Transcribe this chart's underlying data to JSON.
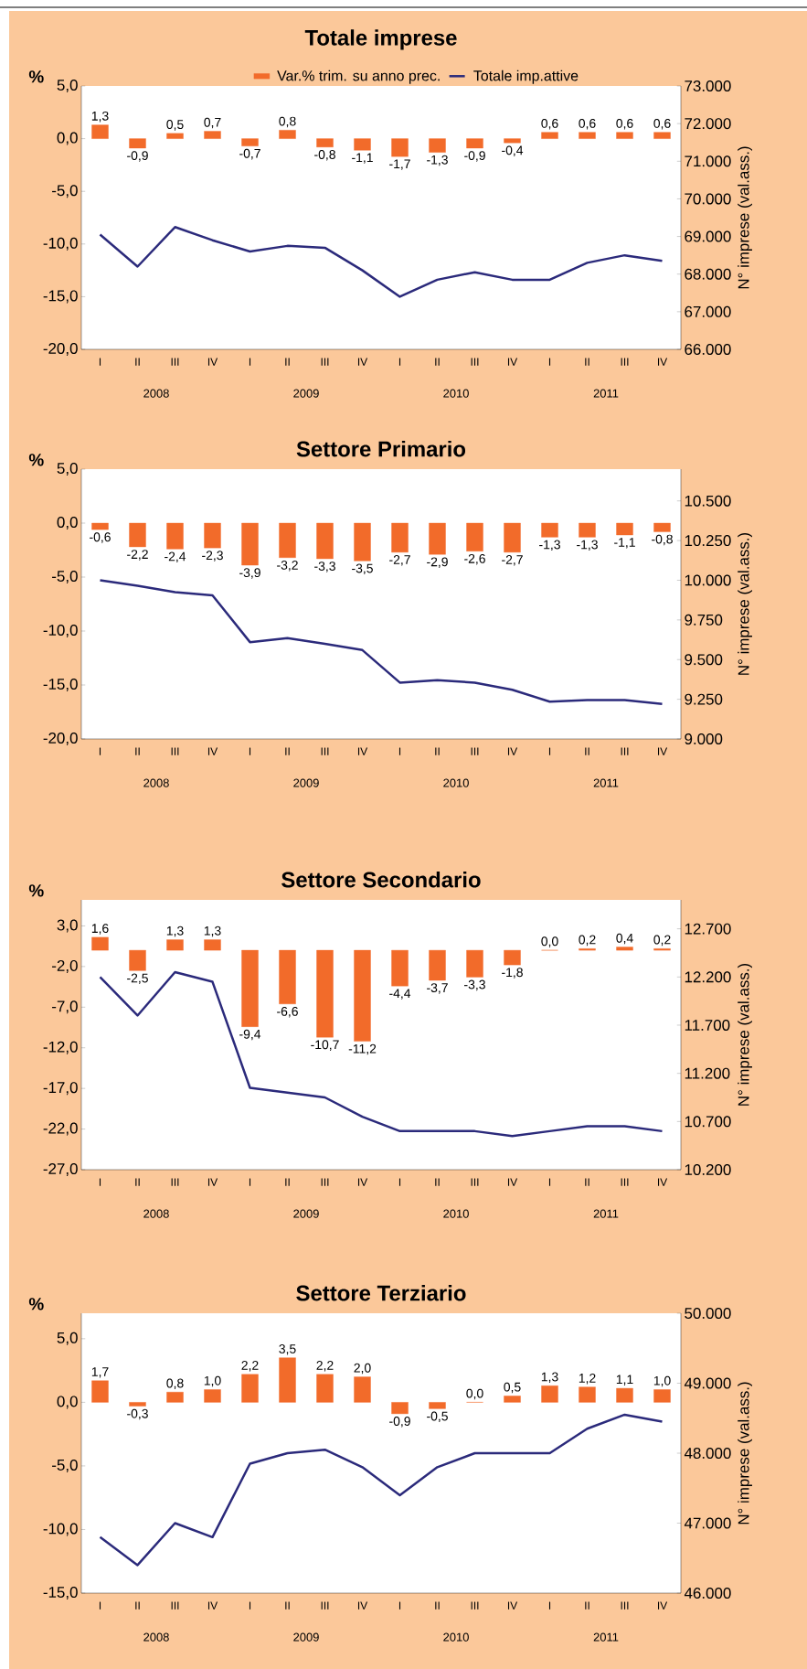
{
  "chart_data": [
    {
      "type": "bar",
      "title": "Totale imprese",
      "ylabel": "%",
      "y2label": "N° imprese (val.ass.)",
      "legend": "top",
      "marker": "none",
      "categories": [
        "I",
        "II",
        "III",
        "IV",
        "I",
        "II",
        "III",
        "IV",
        "I",
        "II",
        "III",
        "IV",
        "I",
        "II",
        "III",
        "IV"
      ],
      "annotations": [
        "2008",
        "2009",
        "2010",
        "2011"
      ],
      "ylim": [
        -20,
        5
      ],
      "yticks": [
        {
          "value": -20,
          "label": "-20,0"
        },
        {
          "value": -15,
          "label": "-15,0"
        },
        {
          "value": -10,
          "label": "-10,0"
        },
        {
          "value": -5,
          "label": "-5,0"
        },
        {
          "value": 0,
          "label": "0,0"
        },
        {
          "value": 5,
          "label": "5,0"
        }
      ],
      "y2lim": [
        66000,
        73000
      ],
      "y2ticks": [
        {
          "value": 66000,
          "label": "66.000"
        },
        {
          "value": 67000,
          "label": "67.000"
        },
        {
          "value": 68000,
          "label": "68.000"
        },
        {
          "value": 69000,
          "label": "69.000"
        },
        {
          "value": 70000,
          "label": "70.000"
        },
        {
          "value": 71000,
          "label": "71.000"
        },
        {
          "value": 72000,
          "label": "72.000"
        },
        {
          "value": 73000,
          "label": "73.000"
        }
      ],
      "series": [
        {
          "name": "Var.% trim. su anno prec.",
          "color": "#f26b2a",
          "values": [
            1.3,
            -0.9,
            0.5,
            0.7,
            -0.7,
            0.8,
            -0.8,
            -1.1,
            -1.7,
            -1.3,
            -0.9,
            -0.4,
            0.6,
            0.6,
            0.6,
            0.6
          ],
          "value_labels": [
            "1,3",
            "-0,9",
            "0,5",
            "0,7",
            "-0,7",
            "0,8",
            "-0,8",
            "-1,1",
            "-1,7",
            "-1,3",
            "-0,9",
            "-0,4",
            "0,6",
            "0,6",
            "0,6",
            "0,6"
          ]
        },
        {
          "type": "line",
          "name": "Totale imp.attive",
          "color": "#2b2a7b",
          "axis": "y2",
          "values": [
            69050,
            68200,
            69250,
            68900,
            68600,
            68750,
            68700,
            68100,
            67400,
            67850,
            68050,
            67850,
            67850,
            68300,
            68500,
            68350
          ]
        }
      ]
    },
    {
      "type": "bar",
      "title": "Settore Primario",
      "ylabel": "%",
      "y2label": "N° imprese (val.ass.)",
      "legend": false,
      "marker": "none",
      "categories": [
        "I",
        "II",
        "III",
        "IV",
        "I",
        "II",
        "III",
        "IV",
        "I",
        "II",
        "III",
        "IV",
        "I",
        "II",
        "III",
        "IV"
      ],
      "annotations": [
        "2008",
        "2009",
        "2010",
        "2011"
      ],
      "ylim": [
        -20,
        5
      ],
      "yticks": [
        {
          "value": -20,
          "label": "-20,0"
        },
        {
          "value": -15,
          "label": "-15,0"
        },
        {
          "value": -10,
          "label": "-10,0"
        },
        {
          "value": -5,
          "label": "-5,0"
        },
        {
          "value": 0,
          "label": "0,0"
        },
        {
          "value": 5,
          "label": "5,0"
        }
      ],
      "y2lim": [
        9000,
        10700
      ],
      "y2ticks": [
        {
          "value": 9000,
          "label": "9.000"
        },
        {
          "value": 9250,
          "label": "9.250"
        },
        {
          "value": 9500,
          "label": "9.500"
        },
        {
          "value": 9750,
          "label": "9.750"
        },
        {
          "value": 10000,
          "label": "10.000"
        },
        {
          "value": 10250,
          "label": "10.250"
        },
        {
          "value": 10500,
          "label": "10.500"
        }
      ],
      "series": [
        {
          "color": "#f26b2a",
          "values": [
            -0.6,
            -2.2,
            -2.4,
            -2.3,
            -3.9,
            -3.2,
            -3.3,
            -3.5,
            -2.7,
            -2.9,
            -2.6,
            -2.7,
            -1.3,
            -1.3,
            -1.1,
            -0.8
          ],
          "value_labels": [
            "-0,6",
            "-2,2",
            "-2,4",
            "-2,3",
            "-3,9",
            "-3,2",
            "-3,3",
            "-3,5",
            "-2,7",
            "-2,9",
            "-2,6",
            "-2,7",
            "-1,3",
            "-1,3",
            "-1,1",
            "-0,8"
          ]
        },
        {
          "type": "line",
          "color": "#2b2a7b",
          "axis": "y2",
          "values": [
            10000,
            9965,
            9925,
            9905,
            9610,
            9635,
            9600,
            9560,
            9355,
            9370,
            9355,
            9310,
            9235,
            9245,
            9245,
            9220
          ]
        }
      ]
    },
    {
      "type": "bar",
      "title": "Settore Secondario",
      "ylabel": "%",
      "y2label": "N° imprese (val.ass.)",
      "legend": false,
      "marker": "none",
      "categories": [
        "I",
        "II",
        "III",
        "IV",
        "I",
        "II",
        "III",
        "IV",
        "I",
        "II",
        "III",
        "IV",
        "I",
        "II",
        "III",
        "IV"
      ],
      "annotations": [
        "2008",
        "2009",
        "2010",
        "2011"
      ],
      "ylim": [
        -27,
        6.2
      ],
      "yticks": [
        {
          "value": -27,
          "label": "-27,0"
        },
        {
          "value": -22,
          "label": "-22,0"
        },
        {
          "value": -17,
          "label": "-17,0"
        },
        {
          "value": -12,
          "label": "-12,0"
        },
        {
          "value": -7,
          "label": "-7,0"
        },
        {
          "value": -2,
          "label": "-2,0"
        },
        {
          "value": 3,
          "label": "3,0"
        }
      ],
      "y2lim": [
        10200,
        13000
      ],
      "y2ticks": [
        {
          "value": 10200,
          "label": "10.200"
        },
        {
          "value": 10700,
          "label": "10.700"
        },
        {
          "value": 11200,
          "label": "11.200"
        },
        {
          "value": 11700,
          "label": "11.700"
        },
        {
          "value": 12200,
          "label": "12.200"
        },
        {
          "value": 12700,
          "label": "12.700"
        }
      ],
      "series": [
        {
          "color": "#f26b2a",
          "values": [
            1.6,
            -2.5,
            1.3,
            1.3,
            -9.4,
            -6.6,
            -10.7,
            -11.2,
            -4.4,
            -3.7,
            -3.3,
            -1.8,
            0.0,
            0.2,
            0.4,
            0.2
          ],
          "value_labels": [
            "1,6",
            "-2,5",
            "1,3",
            "1,3",
            "-9,4",
            "-6,6",
            "-10,7",
            "-11,2",
            "-4,4",
            "-3,7",
            "-3,3",
            "-1,8",
            "0,0",
            "0,2",
            "0,4",
            "0,2"
          ]
        },
        {
          "type": "line",
          "color": "#2b2a7b",
          "axis": "y2",
          "values": [
            12200,
            11800,
            12250,
            12150,
            11050,
            11000,
            10950,
            10750,
            10600,
            10600,
            10600,
            10550,
            10600,
            10650,
            10650,
            10600
          ]
        }
      ]
    },
    {
      "type": "bar",
      "title": "Settore Terziario",
      "ylabel": "%",
      "y2label": "N° imprese (val.ass.)",
      "legend": false,
      "marker": "none",
      "categories": [
        "I",
        "II",
        "III",
        "IV",
        "I",
        "II",
        "III",
        "IV",
        "I",
        "II",
        "III",
        "IV",
        "I",
        "II",
        "III",
        "IV"
      ],
      "annotations": [
        "2008",
        "2009",
        "2010",
        "2011"
      ],
      "ylim": [
        -15,
        7
      ],
      "yticks": [
        {
          "value": -15,
          "label": "-15,0"
        },
        {
          "value": -10,
          "label": "-10,0"
        },
        {
          "value": -5,
          "label": "-5,0"
        },
        {
          "value": 0,
          "label": "0,0"
        },
        {
          "value": 5,
          "label": "5,0"
        }
      ],
      "y2lim": [
        46000,
        50000
      ],
      "y2ticks": [
        {
          "value": 46000,
          "label": "46.000"
        },
        {
          "value": 47000,
          "label": "47.000"
        },
        {
          "value": 48000,
          "label": "48.000"
        },
        {
          "value": 49000,
          "label": "49.000"
        },
        {
          "value": 50000,
          "label": "50.000"
        }
      ],
      "series": [
        {
          "color": "#f26b2a",
          "values": [
            1.7,
            -0.3,
            0.8,
            1.0,
            2.2,
            3.5,
            2.2,
            2.0,
            -0.9,
            -0.5,
            0.0,
            0.5,
            1.3,
            1.2,
            1.1,
            1.0
          ],
          "value_labels": [
            "1,7",
            "-0,3",
            "0,8",
            "1,0",
            "2,2",
            "3,5",
            "2,2",
            "2,0",
            "-0,9",
            "-0,5",
            "0,0",
            "0,5",
            "1,3",
            "1,2",
            "1,1",
            "1,0"
          ]
        },
        {
          "type": "line",
          "color": "#2b2a7b",
          "axis": "y2",
          "values": [
            46800,
            46400,
            47000,
            46800,
            47850,
            48000,
            48050,
            47800,
            47400,
            47800,
            48000,
            48000,
            48000,
            48350,
            48550,
            48450
          ]
        }
      ]
    }
  ]
}
